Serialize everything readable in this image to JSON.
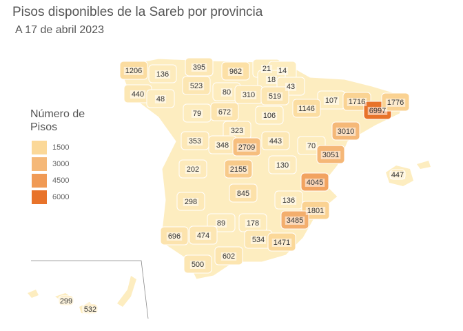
{
  "title": "Pisos disponibles de la Sareb por provincia",
  "subtitle": "A 17 de abril 2023",
  "legend": {
    "title": "Número de Pisos",
    "ticks": [
      1500,
      3000,
      4500,
      6000
    ],
    "low_color": "#fdedc0",
    "colors": [
      "#fbd898",
      "#f5b878",
      "#f09a55",
      "#e8732a"
    ]
  },
  "regions": [
    {
      "value": 1206
    },
    {
      "value": 136
    },
    {
      "value": 395
    },
    {
      "value": 962
    },
    {
      "value": 21
    },
    {
      "value": 14
    },
    {
      "value": 18
    },
    {
      "value": 43
    },
    {
      "value": 523
    },
    {
      "value": 80
    },
    {
      "value": 310
    },
    {
      "value": 519
    },
    {
      "value": 440
    },
    {
      "value": 48
    },
    {
      "value": 107
    },
    {
      "value": 1716
    },
    {
      "value": 6997
    },
    {
      "value": 1776
    },
    {
      "value": 79
    },
    {
      "value": 672
    },
    {
      "value": 1146
    },
    {
      "value": 106
    },
    {
      "value": 323
    },
    {
      "value": 3010
    },
    {
      "value": 353
    },
    {
      "value": 348
    },
    {
      "value": 2709
    },
    {
      "value": 443
    },
    {
      "value": 70
    },
    {
      "value": 3051
    },
    {
      "value": 202
    },
    {
      "value": 2155
    },
    {
      "value": 130
    },
    {
      "value": 4045
    },
    {
      "value": 447
    },
    {
      "value": 845
    },
    {
      "value": 298
    },
    {
      "value": 136
    },
    {
      "value": 1801
    },
    {
      "value": 3485
    },
    {
      "value": 89
    },
    {
      "value": 178
    },
    {
      "value": 696
    },
    {
      "value": 474
    },
    {
      "value": 534
    },
    {
      "value": 1471
    },
    {
      "value": 602
    },
    {
      "value": 500
    },
    {
      "value": 299
    },
    {
      "value": 532
    }
  ]
}
